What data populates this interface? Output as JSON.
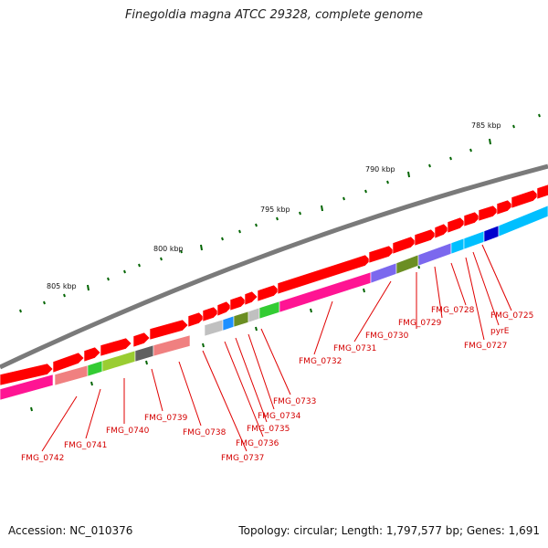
{
  "title": "Finegoldia magna ATCC 29328, complete genome",
  "accession": "Accession: NC_010376",
  "summary": "Topology: circular; Length: 1,797,577 bp; Genes: 1,691",
  "colors": {
    "backbone": "#808080",
    "forward_gene": "#ff0000",
    "label_line": "#e00000",
    "tick": "#006400"
  },
  "scale_labels": [
    "785 kbp",
    "790 kbp",
    "795 kbp",
    "800 kbp",
    "805 kbp"
  ],
  "gene_labels": [
    "FMG_0725",
    "pyrE",
    "FMG_0727",
    "FMG_0728",
    "FMG_0729",
    "FMG_0730",
    "FMG_0731",
    "FMG_0732",
    "FMG_0733",
    "FMG_0734",
    "FMG_0735",
    "FMG_0736",
    "FMG_0737",
    "FMG_0738",
    "FMG_0739",
    "FMG_0740",
    "FMG_0741",
    "FMG_0742"
  ]
}
